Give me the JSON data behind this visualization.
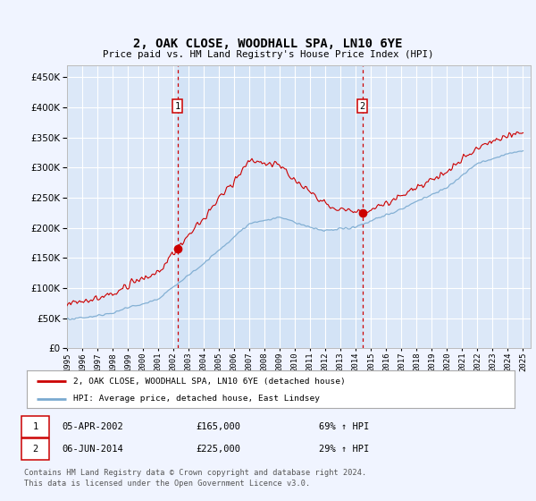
{
  "title": "2, OAK CLOSE, WOODHALL SPA, LN10 6YE",
  "subtitle": "Price paid vs. HM Land Registry's House Price Index (HPI)",
  "background_color": "#f0f4ff",
  "plot_bg_color": "#dce8f8",
  "shade_color": "#ccddf5",
  "grid_color": "#ffffff",
  "hpi_color": "#7aaad0",
  "price_color": "#cc0000",
  "sale1_date": 2002.26,
  "sale1_price": 165000,
  "sale2_date": 2014.43,
  "sale2_price": 225000,
  "legend_entry1": "2, OAK CLOSE, WOODHALL SPA, LN10 6YE (detached house)",
  "legend_entry2": "HPI: Average price, detached house, East Lindsey",
  "table_row1_label": "1",
  "table_row1_date": "05-APR-2002",
  "table_row1_price": "£165,000",
  "table_row1_hpi": "69% ↑ HPI",
  "table_row2_label": "2",
  "table_row2_date": "06-JUN-2014",
  "table_row2_price": "£225,000",
  "table_row2_hpi": "29% ↑ HPI",
  "footer": "Contains HM Land Registry data © Crown copyright and database right 2024.\nThis data is licensed under the Open Government Licence v3.0.",
  "ylim_max": 470000,
  "yticks": [
    0,
    50000,
    100000,
    150000,
    200000,
    250000,
    300000,
    350000,
    400000,
    450000
  ]
}
